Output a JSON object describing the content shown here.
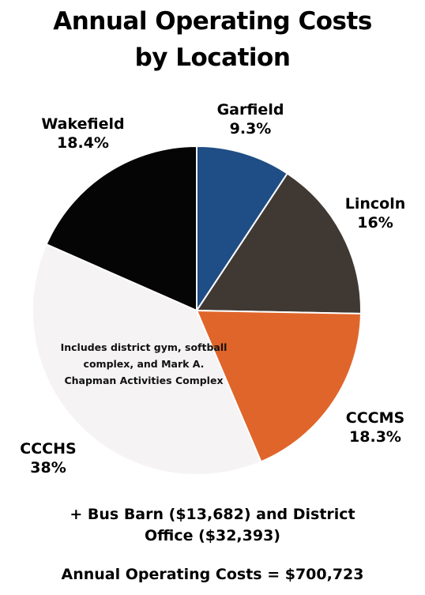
{
  "title_line1": "Annual Operating Costs",
  "title_line2": "by Location",
  "note": "Includes district gym, softball complex, and Mark A. Chapman Activities Complex",
  "footer": {
    "line1": "+ Bus Barn ($13,682) and District",
    "line2": "Office ($32,393)",
    "total": "Annual Operating Costs = $700,723"
  },
  "chart_data": {
    "type": "pie",
    "title": "Annual Operating Costs by Location",
    "slices": [
      {
        "name": "Garfield",
        "label": "9.3%",
        "value": 9.3,
        "color": "#1f4d85"
      },
      {
        "name": "Lincoln",
        "label": "16%",
        "value": 16,
        "color": "#403933"
      },
      {
        "name": "CCCMS",
        "label": "18.3%",
        "value": 18.3,
        "color": "#e0652a"
      },
      {
        "name": "CCCHS",
        "label": "38%",
        "value": 38,
        "color": "#f5f3f4"
      },
      {
        "name": "Wakefield",
        "label": "18.4%",
        "value": 18.4,
        "color": "#050505"
      }
    ]
  }
}
